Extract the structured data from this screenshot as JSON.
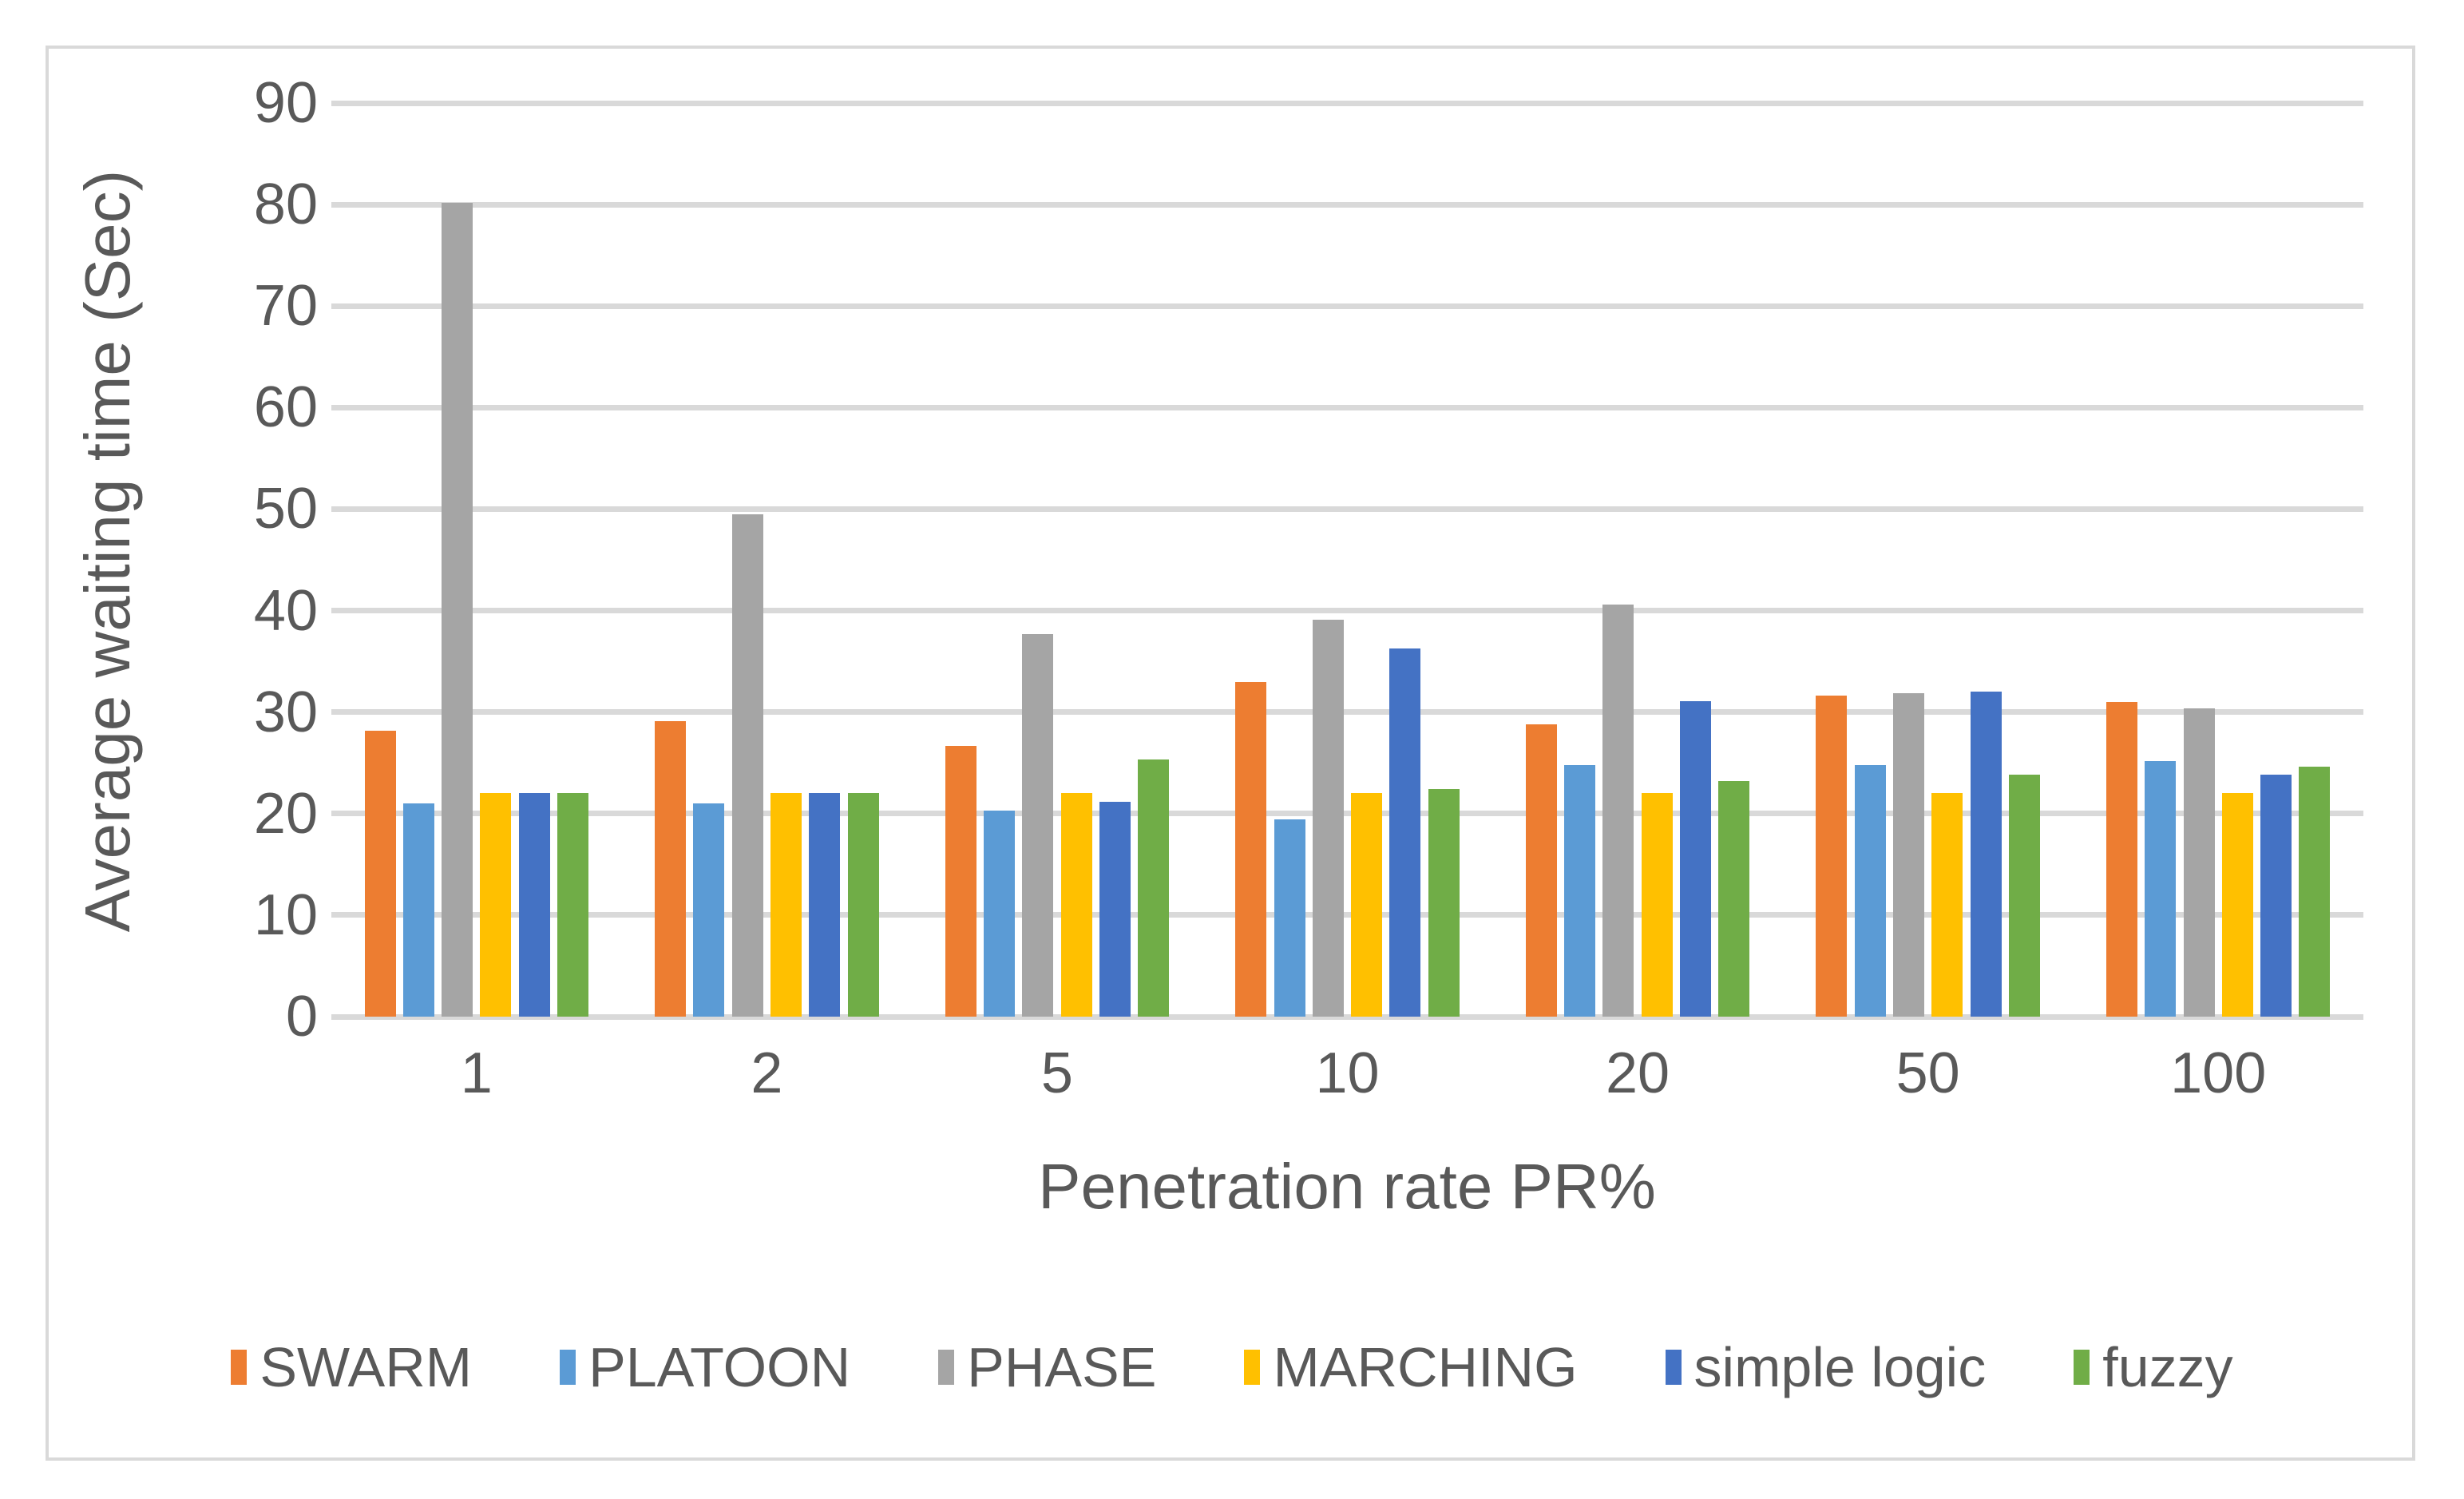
{
  "chart_data": {
    "type": "bar",
    "title": "",
    "xlabel": "Penetration rate PR%",
    "ylabel": "Average waiting time (Sec)",
    "categories": [
      "1",
      "2",
      "5",
      "10",
      "20",
      "50",
      "100"
    ],
    "series": [
      {
        "name": "SWARM",
        "color": "#ED7D31",
        "values": [
          28.2,
          29.1,
          26.7,
          33.0,
          28.8,
          31.6,
          31.0
        ]
      },
      {
        "name": "PLATOON",
        "color": "#5B9BD5",
        "values": [
          21.0,
          21.0,
          20.3,
          19.4,
          24.8,
          24.8,
          25.2
        ]
      },
      {
        "name": "PHASE",
        "color": "#A5A5A5",
        "values": [
          80.2,
          49.5,
          37.7,
          39.1,
          40.6,
          31.9,
          30.4
        ]
      },
      {
        "name": "MARCHING",
        "color": "#FFC000",
        "values": [
          22.0,
          22.0,
          22.0,
          22.0,
          22.0,
          22.0,
          22.0
        ]
      },
      {
        "name": "simple logic",
        "color": "#4472C4",
        "values": [
          22.0,
          22.0,
          21.2,
          36.3,
          31.1,
          32.0,
          23.8
        ]
      },
      {
        "name": "fuzzy",
        "color": "#70AD47",
        "values": [
          22.0,
          22.0,
          25.3,
          22.4,
          23.2,
          23.8,
          24.6
        ]
      }
    ],
    "y_axis": {
      "min": 0,
      "max": 90,
      "step": 10,
      "tick_labels": [
        "0",
        "10",
        "20",
        "30",
        "40",
        "50",
        "60",
        "70",
        "80",
        "90"
      ]
    },
    "x_axis": {
      "tick_labels": [
        "1",
        "2",
        "5",
        "10",
        "20",
        "50",
        "100"
      ]
    },
    "grid": true,
    "legend_position": "bottom"
  },
  "colors": {
    "text": "#595959",
    "gridline": "#D9D9D9",
    "axis_line": "#D9D9D9",
    "frame_border": "#D9D9D9",
    "background": "#FFFFFF"
  }
}
